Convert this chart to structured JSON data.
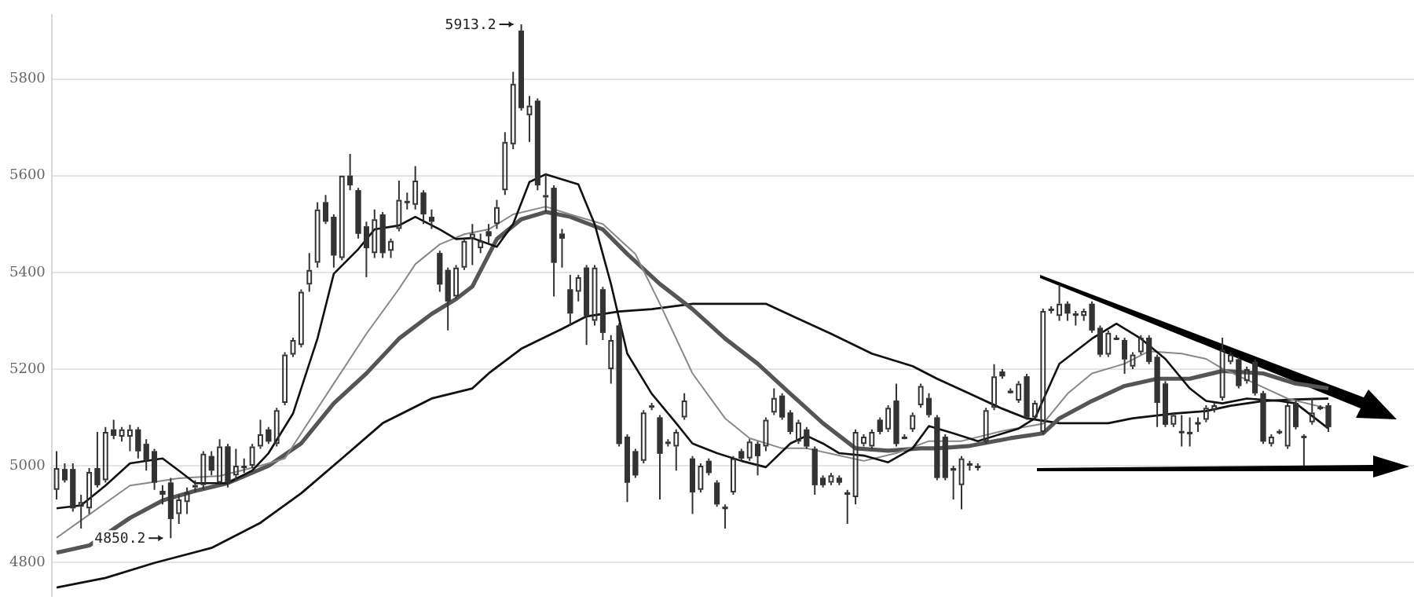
{
  "chart_data": {
    "type": "candlestick",
    "color": "#333333",
    "grid": "y",
    "legend": false,
    "tick_labels": "y",
    "ylim": [
      4730,
      5933
    ],
    "yticks": [
      4800,
      5000,
      5200,
      5400,
      5600,
      5800
    ],
    "annotations": [
      "5913.2",
      "4850.2"
    ],
    "categories": [
      null,
      null,
      null,
      null,
      null,
      null,
      null,
      null,
      null,
      null,
      null,
      null,
      null,
      null,
      null,
      null,
      null,
      null,
      null,
      null,
      null,
      null,
      null,
      null,
      null,
      null,
      null,
      null,
      null,
      null,
      null,
      null,
      null,
      null,
      null,
      null,
      null,
      null,
      null,
      null,
      null,
      null,
      null,
      null,
      null,
      null,
      null,
      null,
      null,
      null,
      null,
      null,
      null,
      null,
      null,
      null,
      null,
      null,
      null,
      null,
      null,
      null,
      null,
      null,
      null,
      null,
      null,
      null,
      null,
      null,
      null,
      null,
      null,
      null,
      null,
      null,
      null,
      null,
      null,
      null,
      null,
      null,
      null,
      null,
      null,
      null,
      null,
      null,
      null,
      null,
      null,
      null,
      null,
      null,
      null,
      null,
      null,
      null,
      null,
      null,
      null,
      null,
      null,
      null,
      null,
      null,
      null,
      null,
      null,
      null,
      null,
      null,
      null,
      null,
      null,
      null,
      null,
      null,
      null,
      null,
      null,
      null,
      null,
      null,
      null,
      null,
      null,
      null,
      null,
      null,
      null,
      null,
      null,
      null,
      null,
      null,
      null,
      null,
      null,
      null,
      null,
      null,
      null,
      null,
      null,
      null,
      null,
      null,
      null,
      null,
      null,
      null,
      null,
      null,
      null,
      null,
      null
    ],
    "ohlc": [
      [
        4950,
        5030,
        4930,
        4995
      ],
      [
        4993,
        5005,
        4965,
        4970
      ],
      [
        4993,
        5005,
        4905,
        4912
      ],
      [
        4915,
        4940,
        4870,
        4925
      ],
      [
        4912,
        4995,
        4900,
        4987
      ],
      [
        4995,
        5070,
        4955,
        4960
      ],
      [
        4970,
        5080,
        4965,
        5070
      ],
      [
        5075,
        5095,
        5055,
        5062
      ],
      [
        5060,
        5080,
        5050,
        5075
      ],
      [
        5060,
        5085,
        5030,
        5075
      ],
      [
        5075,
        5080,
        5015,
        5030
      ],
      [
        5045,
        5055,
        4990,
        5012
      ],
      [
        5030,
        5035,
        4950,
        4965
      ],
      [
        4948,
        4960,
        4920,
        4940
      ],
      [
        4965,
        4975,
        4850.2,
        4890
      ],
      [
        4900,
        4940,
        4880,
        4930
      ],
      [
        4925,
        4955,
        4900,
        4945
      ],
      [
        4955,
        4970,
        4945,
        4960
      ],
      [
        4960,
        5030,
        4950,
        5025
      ],
      [
        5020,
        5030,
        4980,
        4990
      ],
      [
        4965,
        5055,
        4960,
        5040
      ],
      [
        5040,
        5045,
        4955,
        4965
      ],
      [
        4980,
        5035,
        4970,
        5000
      ],
      [
        4995,
        5015,
        4985,
        5000
      ],
      [
        5000,
        5045,
        4995,
        5040
      ],
      [
        5040,
        5095,
        5035,
        5065
      ],
      [
        5075,
        5080,
        5045,
        5050
      ],
      [
        5045,
        5120,
        5040,
        5115
      ],
      [
        5130,
        5235,
        5125,
        5230
      ],
      [
        5230,
        5265,
        5225,
        5260
      ],
      [
        5250,
        5365,
        5245,
        5360
      ],
      [
        5375,
        5440,
        5360,
        5405
      ],
      [
        5420,
        5545,
        5410,
        5530
      ],
      [
        5545,
        5560,
        5500,
        5505
      ],
      [
        5515,
        5520,
        5410,
        5435
      ],
      [
        5430,
        5600,
        5425,
        5600
      ],
      [
        5600,
        5645,
        5570,
        5580
      ],
      [
        5570,
        5575,
        5470,
        5480
      ],
      [
        5495,
        5505,
        5390,
        5450
      ],
      [
        5440,
        5530,
        5430,
        5510
      ],
      [
        5520,
        5525,
        5430,
        5440
      ],
      [
        5445,
        5470,
        5430,
        5465
      ],
      [
        5490,
        5590,
        5485,
        5550
      ],
      [
        5545,
        5565,
        5530,
        5548
      ],
      [
        5540,
        5620,
        5530,
        5590
      ],
      [
        5565,
        5570,
        5500,
        5520
      ],
      [
        5515,
        5530,
        5490,
        5505
      ],
      [
        5440,
        5445,
        5360,
        5375
      ],
      [
        5405,
        5410,
        5280,
        5340
      ],
      [
        5350,
        5415,
        5345,
        5410
      ],
      [
        5410,
        5470,
        5405,
        5465
      ],
      [
        5470,
        5500,
        5415,
        5480
      ],
      [
        5450,
        5480,
        5440,
        5465
      ],
      [
        5485,
        5500,
        5460,
        5475
      ],
      [
        5500,
        5550,
        5490,
        5535
      ],
      [
        5570,
        5690,
        5560,
        5670
      ],
      [
        5665,
        5815,
        5655,
        5790
      ],
      [
        5900,
        5913.2,
        5735,
        5740
      ],
      [
        5725,
        5765,
        5670,
        5745
      ],
      [
        5755,
        5760,
        5570,
        5580
      ],
      [
        5555,
        5605,
        5525,
        5560
      ],
      [
        5575,
        5580,
        5350,
        5420
      ],
      [
        5480,
        5490,
        5410,
        5470
      ],
      [
        5365,
        5395,
        5290,
        5315
      ],
      [
        5360,
        5395,
        5340,
        5390
      ],
      [
        5410,
        5415,
        5250,
        5310
      ],
      [
        5300,
        5415,
        5290,
        5410
      ],
      [
        5365,
        5370,
        5260,
        5275
      ],
      [
        5200,
        5270,
        5170,
        5260
      ],
      [
        5290,
        5295,
        5040,
        5045
      ],
      [
        5060,
        5065,
        4925,
        4965
      ],
      [
        5030,
        5035,
        4975,
        4980
      ],
      [
        5010,
        5115,
        5005,
        5110
      ],
      [
        5120,
        5130,
        5115,
        5125
      ],
      [
        5100,
        5105,
        4930,
        5025
      ],
      [
        5045,
        5055,
        5040,
        5050
      ],
      [
        5040,
        5075,
        4990,
        5070
      ],
      [
        5100,
        5150,
        5095,
        5135
      ],
      [
        5015,
        5020,
        4900,
        4945
      ],
      [
        4950,
        5005,
        4945,
        5000
      ],
      [
        5010,
        5015,
        4980,
        4985
      ],
      [
        4965,
        4970,
        4915,
        4920
      ],
      [
        4915,
        4920,
        4870,
        4912
      ],
      [
        4945,
        5020,
        4940,
        5015
      ],
      [
        5030,
        5035,
        5010,
        5015
      ],
      [
        5015,
        5055,
        5010,
        5050
      ],
      [
        5045,
        5050,
        4980,
        5020
      ],
      [
        5040,
        5100,
        5030,
        5095
      ],
      [
        5110,
        5160,
        5105,
        5140
      ],
      [
        5145,
        5150,
        5095,
        5100
      ],
      [
        5110,
        5115,
        5065,
        5070
      ],
      [
        5050,
        5095,
        5045,
        5090
      ],
      [
        5075,
        5080,
        5035,
        5040
      ],
      [
        5035,
        5040,
        4940,
        4960
      ],
      [
        4975,
        4980,
        4955,
        4960
      ],
      [
        4965,
        4985,
        4960,
        4980
      ],
      [
        4975,
        4980,
        4960,
        4965
      ],
      [
        4945,
        4950,
        4880,
        4940
      ],
      [
        4935,
        5075,
        4920,
        5070
      ],
      [
        5045,
        5065,
        5040,
        5060
      ],
      [
        5040,
        5075,
        5035,
        5070
      ],
      [
        5095,
        5100,
        5065,
        5070
      ],
      [
        5075,
        5125,
        5070,
        5120
      ],
      [
        5135,
        5170,
        5040,
        5045
      ],
      [
        5060,
        5065,
        5055,
        5058
      ],
      [
        5075,
        5110,
        5070,
        5105
      ],
      [
        5125,
        5170,
        5120,
        5165
      ],
      [
        5140,
        5150,
        5100,
        5105
      ],
      [
        5100,
        5105,
        4970,
        4975
      ],
      [
        5060,
        5065,
        4970,
        4975
      ],
      [
        4995,
        5000,
        4930,
        4990
      ],
      [
        4960,
        5020,
        4910,
        5015
      ],
      [
        5005,
        5010,
        4990,
        5000
      ],
      [
        5000,
        5005,
        4990,
        4998
      ],
      [
        5050,
        5120,
        5045,
        5115
      ],
      [
        5120,
        5210,
        5115,
        5185
      ],
      [
        5195,
        5200,
        5180,
        5185
      ],
      [
        5155,
        5160,
        5150,
        5152
      ],
      [
        5135,
        5175,
        5130,
        5170
      ],
      [
        5185,
        5190,
        5095,
        5100
      ],
      [
        5100,
        5135,
        5095,
        5130
      ],
      [
        5070,
        5325,
        5065,
        5320
      ],
      [
        5325,
        5330,
        5315,
        5322
      ],
      [
        5310,
        5375,
        5300,
        5335
      ],
      [
        5335,
        5340,
        5300,
        5315
      ],
      [
        5315,
        5320,
        5290,
        5312
      ],
      [
        5310,
        5325,
        5300,
        5320
      ],
      [
        5335,
        5340,
        5275,
        5280
      ],
      [
        5285,
        5290,
        5225,
        5230
      ],
      [
        5230,
        5280,
        5225,
        5275
      ],
      [
        5265,
        5270,
        5260,
        5262
      ],
      [
        5260,
        5265,
        5190,
        5220
      ],
      [
        5205,
        5235,
        5200,
        5230
      ],
      [
        5235,
        5270,
        5230,
        5265
      ],
      [
        5265,
        5270,
        5210,
        5215
      ],
      [
        5225,
        5230,
        5080,
        5130
      ],
      [
        5170,
        5175,
        5080,
        5085
      ],
      [
        5085,
        5110,
        5080,
        5105
      ],
      [
        5070,
        5105,
        5040,
        5072
      ],
      [
        5070,
        5100,
        5040,
        5068
      ],
      [
        5090,
        5100,
        5070,
        5088
      ],
      [
        5095,
        5125,
        5090,
        5120
      ],
      [
        5115,
        5130,
        5110,
        5125
      ],
      [
        5140,
        5265,
        5135,
        5240
      ],
      [
        5215,
        5235,
        5210,
        5230
      ],
      [
        5220,
        5225,
        5160,
        5165
      ],
      [
        5175,
        5205,
        5170,
        5200
      ],
      [
        5215,
        5220,
        5145,
        5150
      ],
      [
        5150,
        5155,
        5045,
        5050
      ],
      [
        5045,
        5065,
        5040,
        5060
      ],
      [
        5070,
        5075,
        5065,
        5072
      ],
      [
        5040,
        5130,
        5035,
        5125
      ],
      [
        5130,
        5135,
        5075,
        5080
      ],
      [
        5060,
        5065,
        5000,
        5062
      ],
      [
        5090,
        5140,
        5085,
        5110
      ],
      [
        5120,
        5125,
        5115,
        5122
      ],
      [
        5125,
        5130,
        5070,
        5080
      ]
    ],
    "series": [
      {
        "type": "line",
        "color": "#111111",
        "values": [
          4912,
          null,
          null,
          4918,
          null,
          null,
          4959,
          null,
          null,
          5005,
          null,
          null,
          null,
          5015,
          null,
          4990,
          null,
          4964,
          null,
          null,
          null,
          4964,
          null,
          null,
          4990,
          null,
          5026,
          null,
          null,
          5108,
          null,
          null,
          5263,
          null,
          5397,
          null,
          null,
          5448,
          null,
          5489,
          null,
          null,
          5497,
          null,
          5515,
          null,
          null,
          5489,
          null,
          5469,
          null,
          5471,
          null,
          null,
          5453,
          null,
          5500,
          null,
          5587,
          null,
          5603,
          null,
          null,
          null,
          5582,
          null,
          5500,
          null,
          5376,
          null,
          5232,
          null,
          null,
          5149,
          null,
          null,
          5088,
          null,
          5046,
          null,
          null,
          5026,
          null,
          null,
          5010,
          null,
          null,
          4997,
          null,
          null,
          5046,
          null,
          5062,
          null,
          5046,
          null,
          5026,
          null,
          null,
          5021,
          null,
          null,
          5007,
          null,
          null,
          5036,
          null,
          5082,
          null,
          null,
          5067,
          null,
          null,
          5051,
          null,
          null,
          null,
          null,
          5077,
          null,
          5098,
          null,
          null,
          5211,
          null,
          null,
          null,
          5263,
          null,
          null,
          5294,
          null,
          null,
          5263,
          null,
          null,
          5221,
          null,
          null,
          5160,
          null,
          5134,
          null,
          5129,
          null,
          null,
          5139,
          null,
          null,
          null,
          5134,
          null,
          5129,
          null,
          null,
          null,
          5077
        ]
      },
      {
        "type": "line",
        "color": "#888888",
        "values": [
          4851,
          null,
          null,
          4887,
          null,
          null,
          null,
          null,
          null,
          4959,
          null,
          null,
          null,
          null,
          null,
          4974,
          null,
          null,
          null,
          null,
          4979,
          null,
          null,
          null,
          null,
          5000,
          null,
          null,
          5015,
          null,
          5067,
          null,
          null,
          null,
          5170,
          null,
          null,
          null,
          5273,
          null,
          null,
          null,
          5366,
          null,
          5417,
          null,
          null,
          5458,
          null,
          null,
          5479,
          null,
          null,
          5489,
          null,
          null,
          5520,
          null,
          null,
          null,
          5536,
          null,
          null,
          5520,
          null,
          null,
          null,
          5500,
          null,
          null,
          null,
          5438,
          null,
          null,
          5335,
          null,
          null,
          null,
          5191,
          null,
          null,
          null,
          5098,
          null,
          null,
          5057,
          null,
          null,
          null,
          5036,
          null,
          null,
          5036,
          null,
          null,
          null,
          5021,
          null,
          null,
          5010,
          null,
          null,
          null,
          5026,
          null,
          null,
          null,
          5051,
          null,
          null,
          null,
          5051,
          null,
          null,
          null,
          null,
          5072,
          null,
          null,
          null,
          null,
          5087,
          null,
          null,
          5149,
          null,
          null,
          5191,
          null,
          null,
          null,
          5211,
          null,
          null,
          5237,
          null,
          null,
          null,
          5232,
          null,
          null,
          5221,
          null,
          5201,
          null,
          null,
          null,
          5170,
          null,
          null,
          null,
          5139,
          null,
          null,
          null,
          null,
          5118
        ]
      },
      {
        "type": "line",
        "color": "#555555",
        "values": [
          4820,
          null,
          null,
          null,
          4835,
          null,
          null,
          null,
          null,
          4892,
          null,
          null,
          null,
          4928,
          null,
          null,
          null,
          4948,
          null,
          null,
          null,
          4964,
          null,
          null,
          null,
          null,
          5000,
          null,
          null,
          null,
          5046,
          null,
          null,
          null,
          5129,
          null,
          null,
          null,
          5191,
          null,
          null,
          null,
          5263,
          null,
          null,
          null,
          5314,
          null,
          null,
          5345,
          null,
          5371,
          null,
          null,
          5469,
          null,
          null,
          5510,
          null,
          null,
          5525,
          null,
          null,
          5515,
          null,
          null,
          null,
          5489,
          null,
          null,
          5438,
          null,
          null,
          null,
          5376,
          null,
          null,
          null,
          5324,
          null,
          null,
          null,
          5263,
          null,
          null,
          null,
          5211,
          null,
          null,
          null,
          5149,
          null,
          null,
          null,
          5088,
          null,
          null,
          null,
          5036,
          null,
          null,
          null,
          5031,
          null,
          null,
          null,
          5036,
          null,
          5036,
          null,
          null,
          null,
          5041,
          null,
          null,
          null,
          null,
          5057,
          null,
          null,
          null,
          5067,
          null,
          5098,
          null,
          null,
          null,
          5134,
          null,
          null,
          null,
          5165,
          null,
          null,
          null,
          5180,
          null,
          null,
          null,
          5180,
          null,
          null,
          null,
          5196,
          null,
          null,
          null,
          null,
          5191,
          null,
          null,
          null,
          5170,
          null,
          null,
          null,
          5160
        ]
      },
      {
        "type": "line",
        "color": "#111111",
        "values": [
          4748,
          null,
          null,
          null,
          null,
          null,
          4768,
          null,
          null,
          null,
          null,
          null,
          4799,
          null,
          null,
          null,
          null,
          null,
          null,
          4830,
          null,
          null,
          null,
          null,
          null,
          4882,
          null,
          null,
          null,
          null,
          4943,
          null,
          null,
          null,
          null,
          5015,
          null,
          null,
          null,
          null,
          5088,
          null,
          null,
          null,
          null,
          null,
          5139,
          null,
          null,
          null,
          null,
          5160,
          null,
          5191,
          null,
          null,
          null,
          5242,
          null,
          null,
          null,
          null,
          5283,
          null,
          null,
          5309,
          null,
          null,
          null,
          5319,
          null,
          null,
          null,
          5324,
          null,
          null,
          null,
          null,
          5335,
          null,
          null,
          null,
          5335,
          null,
          null,
          null,
          null,
          5335,
          null,
          null,
          null,
          5304,
          null,
          null,
          null,
          5273,
          null,
          null,
          null,
          null,
          5232,
          null,
          null,
          null,
          null,
          5206,
          null,
          null,
          5180,
          null,
          null,
          null,
          5149,
          null,
          null,
          null,
          5118,
          null,
          null,
          5098,
          null,
          null,
          null,
          5088,
          null,
          null,
          null,
          null,
          null,
          5088,
          null,
          null,
          5098,
          null,
          null,
          null,
          null,
          5108,
          null,
          null,
          null,
          5113,
          null,
          null,
          5124,
          null,
          null,
          null,
          5134,
          null,
          null,
          null,
          5137,
          null,
          null,
          null,
          5139
        ]
      }
    ]
  }
}
